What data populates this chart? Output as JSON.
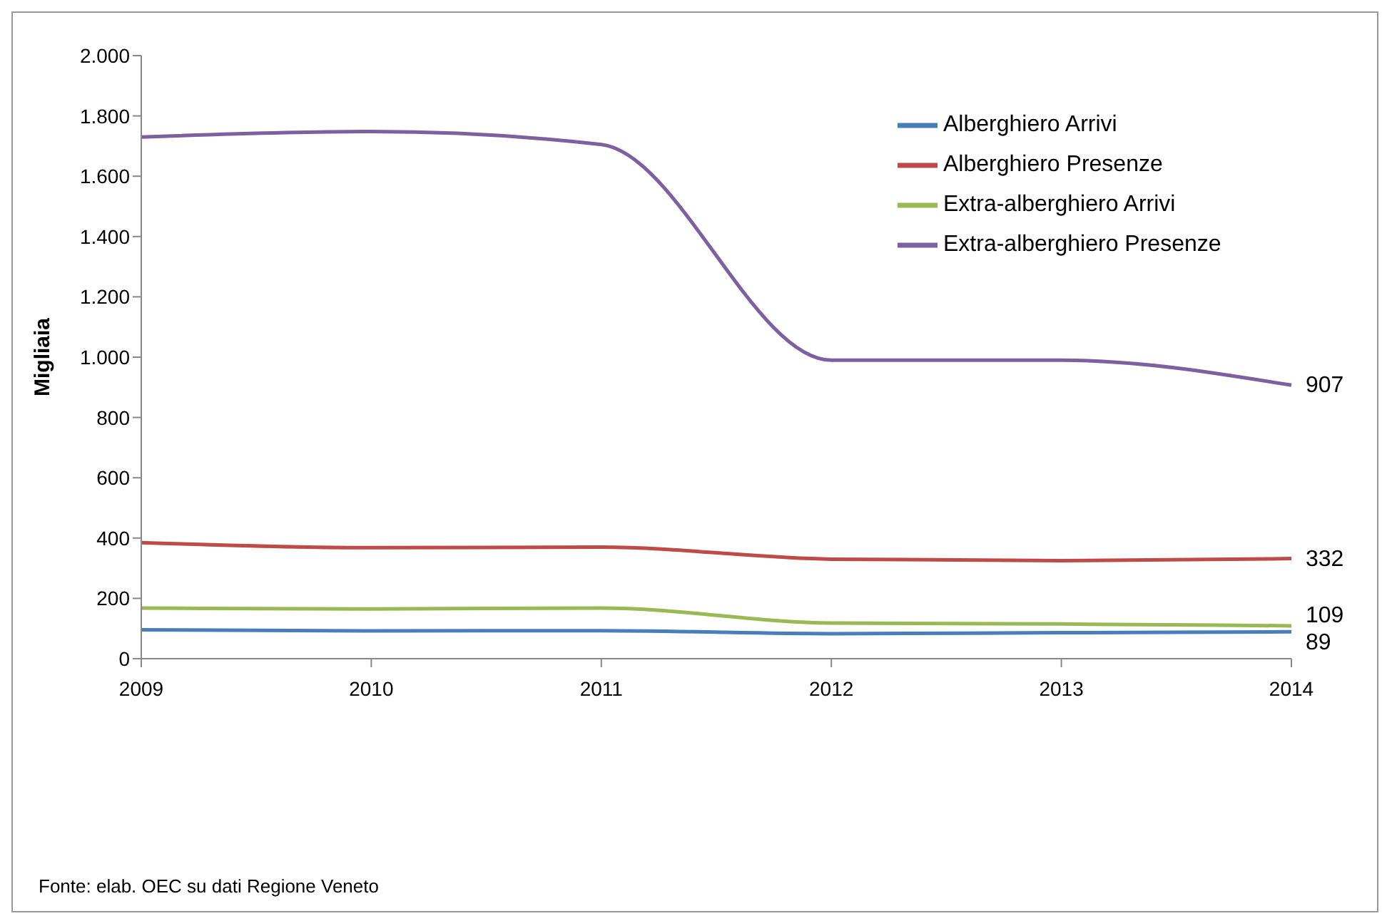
{
  "chart_data": {
    "type": "line",
    "ylabel": "Migliaia",
    "categories": [
      "2009",
      "2010",
      "2011",
      "2012",
      "2013",
      "2014"
    ],
    "ylim": [
      0,
      2000
    ],
    "yticks": [
      {
        "value": 0,
        "label": "0"
      },
      {
        "value": 200,
        "label": "200"
      },
      {
        "value": 400,
        "label": "400"
      },
      {
        "value": 600,
        "label": "600"
      },
      {
        "value": 800,
        "label": "800"
      },
      {
        "value": 1000,
        "label": "1.000"
      },
      {
        "value": 1200,
        "label": "1.200"
      },
      {
        "value": 1400,
        "label": "1.400"
      },
      {
        "value": 1600,
        "label": "1.600"
      },
      {
        "value": 1800,
        "label": "1.800"
      },
      {
        "value": 2000,
        "label": "2.000"
      }
    ],
    "series": [
      {
        "name": "Alberghiero Arrivi",
        "color": "#4a7ebb",
        "values": [
          96,
          92,
          93,
          83,
          86,
          89
        ],
        "value_labels": [
          null,
          null,
          null,
          null,
          null,
          "89"
        ]
      },
      {
        "name": "Alberghiero Presenze",
        "color": "#be4b48",
        "values": [
          385,
          368,
          370,
          330,
          325,
          332
        ],
        "value_labels": [
          null,
          null,
          null,
          null,
          null,
          "332"
        ]
      },
      {
        "name": "Extra-alberghiero Arrivi",
        "color": "#98b954",
        "values": [
          168,
          165,
          168,
          118,
          115,
          109
        ],
        "value_labels": [
          null,
          null,
          null,
          null,
          null,
          "109"
        ]
      },
      {
        "name": "Extra-alberghiero Presenze",
        "color": "#7d60a0",
        "values": [
          1730,
          1748,
          1705,
          990,
          990,
          907
        ],
        "value_labels": [
          null,
          null,
          null,
          null,
          null,
          "907"
        ]
      }
    ],
    "legend": "top right",
    "grid": false,
    "marker": "none",
    "line_style": "solid",
    "annotations": [
      "Fonte: elab. OEC su dati Regione Veneto"
    ]
  }
}
